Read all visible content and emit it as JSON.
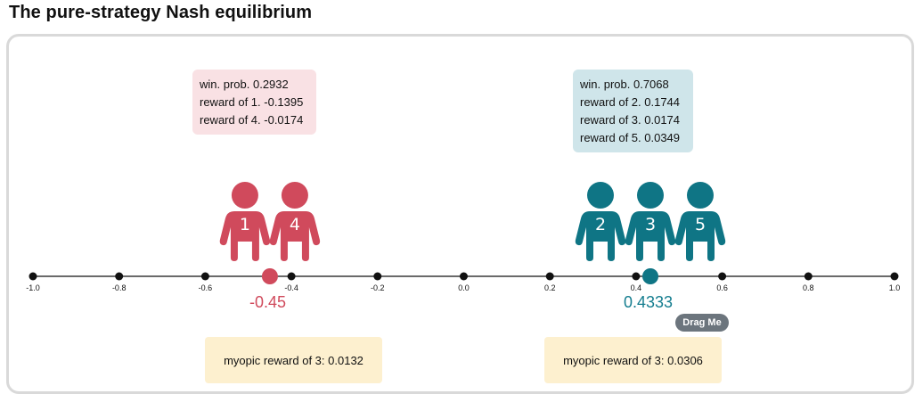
{
  "title": "The pure-strategy Nash equilibrium",
  "colors": {
    "red": "#d04a5c",
    "teal": "#0f7585",
    "red_box": "#f9e1e4",
    "teal_box": "#cfe5ea",
    "myopic_box": "#fdf0cf"
  },
  "axis": {
    "min": -1.0,
    "max": 1.0,
    "ticks": [
      "-1.0",
      "-0.8",
      "-0.6",
      "-0.4",
      "-0.2",
      "0.0",
      "0.2",
      "0.4",
      "0.6",
      "0.8",
      "1.0"
    ]
  },
  "red_group": {
    "position": -0.45,
    "position_label": "-0.45",
    "players": [
      "1",
      "4"
    ],
    "info": [
      "win. prob. 0.2932",
      "reward of 1. -0.1395",
      "reward of 4. -0.0174"
    ],
    "myopic": "myopic reward of 3: 0.0132"
  },
  "teal_group": {
    "position": 0.4333,
    "position_label": "0.4333",
    "players": [
      "2",
      "3",
      "5"
    ],
    "info": [
      "win. prob. 0.7068",
      "reward of 2. 0.1744",
      "reward of 3. 0.0174",
      "reward of 5. 0.0349"
    ],
    "myopic": "myopic reward of 3: 0.0306"
  },
  "drag_label": "Drag Me",
  "icons": {
    "person": "person-icon"
  }
}
